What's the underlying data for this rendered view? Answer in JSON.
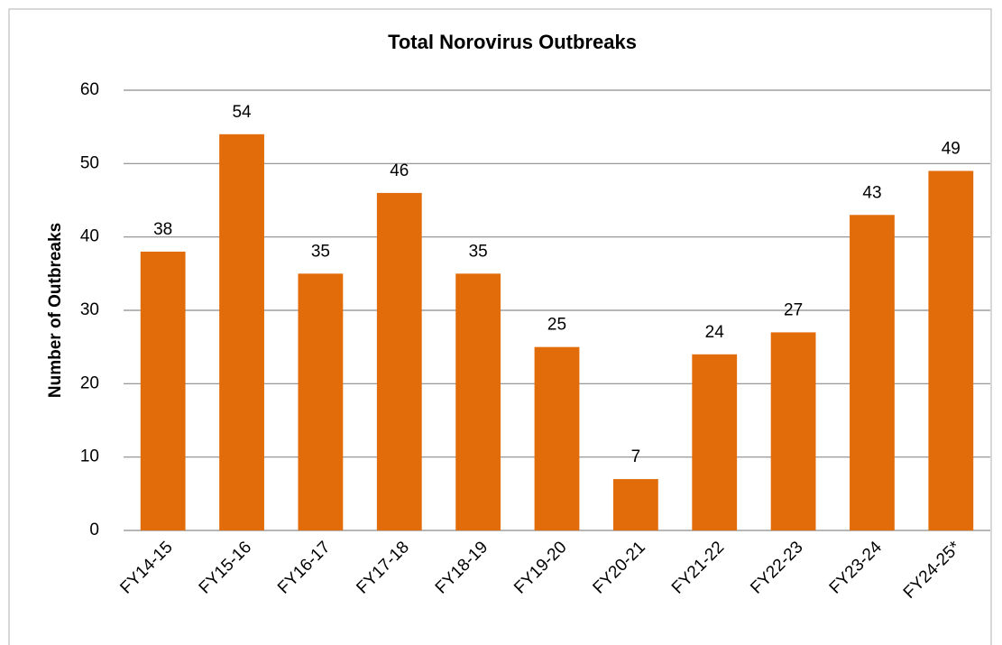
{
  "chart_data": {
    "type": "bar",
    "title": "Total Norovirus Outbreaks",
    "y_label": "Number of Outbreaks",
    "categories": [
      "FY14-15",
      "FY15-16",
      "FY16-17",
      "FY17-18",
      "FY18-19",
      "FY19-20",
      "FY20-21",
      "FY21-22",
      "FY22-23",
      "FY23-24",
      "FY24-25*"
    ],
    "values": [
      38,
      54,
      35,
      46,
      35,
      25,
      7,
      24,
      27,
      43,
      49
    ],
    "color": "#e36c0a",
    "ylim": [
      0,
      60
    ],
    "yticks": [
      0,
      10,
      20,
      30,
      40,
      50,
      60
    ],
    "grid": true
  }
}
